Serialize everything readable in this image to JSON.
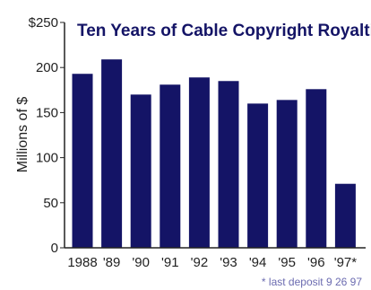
{
  "chart_data": {
    "type": "bar",
    "title": "Ten Years of Cable Copyright Royalties",
    "ylabel": "Millions of $",
    "xlabel": "",
    "categories": [
      "1988",
      "'89",
      "'90",
      "'91",
      "'92",
      "'93",
      "'94",
      "'95",
      "'96",
      "'97*"
    ],
    "values": [
      193,
      209,
      170,
      181,
      189,
      185,
      160,
      164,
      176,
      71
    ],
    "ylim": [
      0,
      250
    ],
    "yticks": [
      "0",
      "50",
      "100",
      "150",
      "200",
      "$250"
    ],
    "note": "* last deposit 9 26 97",
    "grid": false,
    "colors": {
      "bar": "#141466",
      "axis": "#222222",
      "title": "#141466",
      "note": "#6b6bb0"
    }
  }
}
